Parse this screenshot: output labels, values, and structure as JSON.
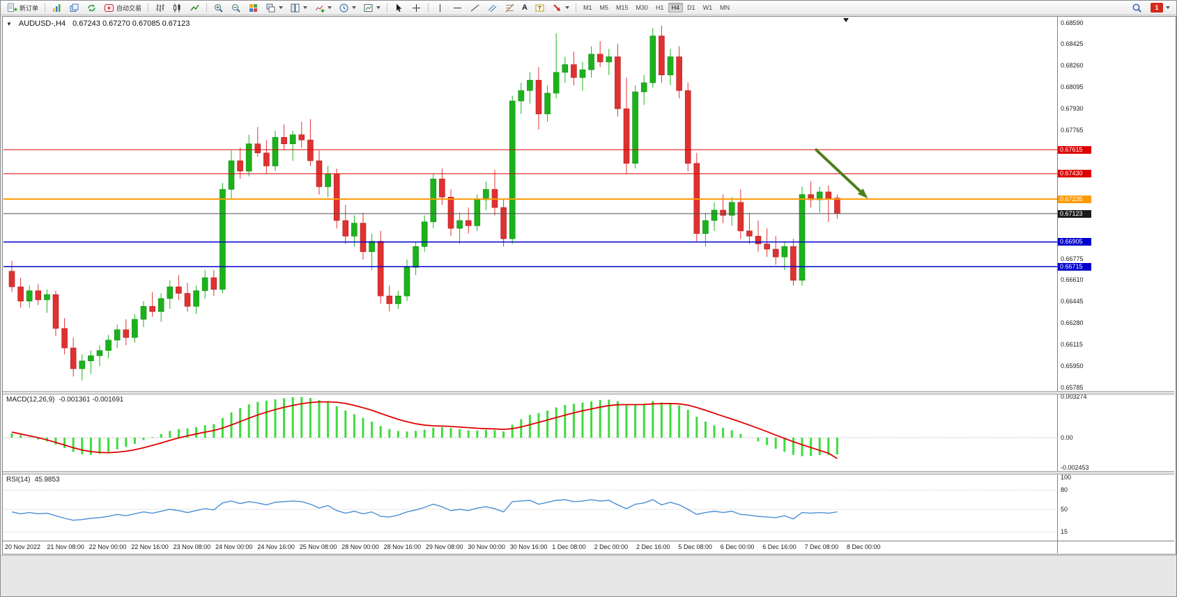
{
  "window": {
    "collapse_marker": "▼",
    "title_symbol": "AUDUSD-,H4",
    "ohlc_text": "0.67243 0.67270 0.67085 0.67123"
  },
  "toolbar": {
    "new_order_label": "新订单",
    "auto_trading_label": "自动交易",
    "text_tool_label": "A",
    "timeframes": [
      "M1",
      "M5",
      "M15",
      "M30",
      "H1",
      "H4",
      "D1",
      "W1",
      "MN"
    ],
    "active_timeframe": "H4",
    "notification_count": "1"
  },
  "colors": {
    "up": "#1db21d",
    "down": "#e03131",
    "up_border": "#0e8a0e",
    "down_border": "#b02020",
    "macd_histogram": "#3ddc3d",
    "macd_signal": "#e00000",
    "rsi_line": "#4a8fd4",
    "arrow": "#4e7f1e"
  },
  "chart_data": {
    "type": "candlestick",
    "symbol": "AUDUSD",
    "period": "H4",
    "current": {
      "open": 0.67243,
      "high": 0.6727,
      "low": 0.67085,
      "close": 0.67123
    },
    "y_axis": {
      "min": 0.65785,
      "max": 0.6859
    },
    "price_ticks": [
      0.6859,
      0.68425,
      0.6826,
      0.68095,
      0.6793,
      0.67765,
      0.66775,
      0.6661,
      0.66445,
      0.6628,
      0.66115,
      0.6595,
      0.65785
    ],
    "price_badges": [
      {
        "label": "0.67615",
        "price": 0.67615,
        "type": "resistance-1",
        "bg": "#dd0000"
      },
      {
        "label": "0.67430",
        "price": 0.6743,
        "type": "resistance-2",
        "bg": "#dd0000"
      },
      {
        "label": "0.67235",
        "price": 0.67235,
        "type": "pivot",
        "bg": "#ff9900"
      },
      {
        "label": "0.67123",
        "price": 0.67123,
        "type": "current-price",
        "bg": "#1c1c1c"
      },
      {
        "label": "0.66905",
        "price": 0.66905,
        "type": "support-1",
        "bg": "#0000cc"
      },
      {
        "label": "0.66715",
        "price": 0.66715,
        "type": "support-2",
        "bg": "#0000cc"
      }
    ],
    "levels": [
      {
        "price": 0.67615,
        "color": "#dd0000",
        "width": 1
      },
      {
        "price": 0.6743,
        "color": "#dd0000",
        "width": 1
      },
      {
        "price": 0.67235,
        "color": "#ff9900",
        "width": 2
      },
      {
        "price": 0.67123,
        "color": "#4d4d4d",
        "width": 1
      },
      {
        "price": 0.66905,
        "color": "#0000cc",
        "width": 1.5
      },
      {
        "price": 0.66715,
        "color": "#0000cc",
        "width": 1.5
      }
    ],
    "arrow_annotation": {
      "from": {
        "index": 91.5,
        "price": 0.6762
      },
      "to": {
        "index": 97.5,
        "price": 0.6724
      },
      "color": "#4e7f1e"
    },
    "time_labels": [
      "20 Nov 2022",
      "21 Nov 08:00",
      "22 Nov 00:00",
      "22 Nov 16:00",
      "23 Nov 08:00",
      "24 Nov 00:00",
      "24 Nov 16:00",
      "25 Nov 08:00",
      "28 Nov 00:00",
      "28 Nov 16:00",
      "29 Nov 08:00",
      "30 Nov 00:00",
      "30 Nov 16:00",
      "1 Dec 08:00",
      "2 Dec 00:00",
      "2 Dec 16:00",
      "5 Dec 08:00",
      "6 Dec 00:00",
      "6 Dec 16:00",
      "7 Dec 08:00",
      "8 Dec 00:00"
    ],
    "candles": [
      [
        0.6668,
        0.6676,
        0.6652,
        0.6656
      ],
      [
        0.6656,
        0.6663,
        0.664,
        0.6645
      ],
      [
        0.6645,
        0.6657,
        0.664,
        0.6653
      ],
      [
        0.6653,
        0.6658,
        0.6642,
        0.6646
      ],
      [
        0.6646,
        0.6654,
        0.6636,
        0.665
      ],
      [
        0.665,
        0.6653,
        0.6618,
        0.6624
      ],
      [
        0.6624,
        0.6632,
        0.6604,
        0.6609
      ],
      [
        0.6609,
        0.6617,
        0.6587,
        0.6593
      ],
      [
        0.6593,
        0.6604,
        0.6584,
        0.6599
      ],
      [
        0.6599,
        0.6607,
        0.6589,
        0.6603
      ],
      [
        0.6603,
        0.6611,
        0.6595,
        0.6607
      ],
      [
        0.6607,
        0.6619,
        0.6601,
        0.6615
      ],
      [
        0.6615,
        0.6627,
        0.6609,
        0.6623
      ],
      [
        0.6623,
        0.6631,
        0.6611,
        0.6617
      ],
      [
        0.6617,
        0.6635,
        0.6613,
        0.6631
      ],
      [
        0.6631,
        0.6645,
        0.6625,
        0.6641
      ],
      [
        0.6641,
        0.6652,
        0.6633,
        0.6637
      ],
      [
        0.6637,
        0.6651,
        0.6629,
        0.6647
      ],
      [
        0.6647,
        0.6661,
        0.6639,
        0.6656
      ],
      [
        0.6656,
        0.6665,
        0.6646,
        0.6651
      ],
      [
        0.6651,
        0.6659,
        0.6637,
        0.6641
      ],
      [
        0.6641,
        0.6657,
        0.6635,
        0.6653
      ],
      [
        0.6653,
        0.6669,
        0.6647,
        0.6663
      ],
      [
        0.6663,
        0.6669,
        0.6649,
        0.6654
      ],
      [
        0.6654,
        0.6736,
        0.6651,
        0.6731
      ],
      [
        0.6731,
        0.6761,
        0.6723,
        0.6753
      ],
      [
        0.6753,
        0.6763,
        0.6739,
        0.6745
      ],
      [
        0.6745,
        0.6773,
        0.6741,
        0.6766
      ],
      [
        0.6766,
        0.6779,
        0.6756,
        0.6759
      ],
      [
        0.6759,
        0.6769,
        0.6743,
        0.6749
      ],
      [
        0.6749,
        0.6776,
        0.6745,
        0.6771
      ],
      [
        0.6771,
        0.6781,
        0.6761,
        0.6766
      ],
      [
        0.6766,
        0.6776,
        0.6753,
        0.6773
      ],
      [
        0.6773,
        0.6783,
        0.6763,
        0.6769
      ],
      [
        0.6769,
        0.6785,
        0.6749,
        0.6753
      ],
      [
        0.6753,
        0.6761,
        0.6727,
        0.6733
      ],
      [
        0.6733,
        0.6749,
        0.6725,
        0.6743
      ],
      [
        0.6743,
        0.6747,
        0.6701,
        0.6707
      ],
      [
        0.6707,
        0.6719,
        0.6689,
        0.6695
      ],
      [
        0.6695,
        0.6711,
        0.6687,
        0.6705
      ],
      [
        0.6705,
        0.6713,
        0.6677,
        0.6683
      ],
      [
        0.6683,
        0.6697,
        0.6669,
        0.6691
      ],
      [
        0.6691,
        0.6699,
        0.6643,
        0.6649
      ],
      [
        0.6649,
        0.6657,
        0.6637,
        0.6643
      ],
      [
        0.6643,
        0.6653,
        0.6639,
        0.6649
      ],
      [
        0.6649,
        0.6677,
        0.6645,
        0.6671
      ],
      [
        0.6671,
        0.6691,
        0.6665,
        0.6687
      ],
      [
        0.6687,
        0.6711,
        0.6683,
        0.6706
      ],
      [
        0.6706,
        0.6743,
        0.6701,
        0.6739
      ],
      [
        0.6739,
        0.6747,
        0.6719,
        0.6725
      ],
      [
        0.6725,
        0.6731,
        0.6695,
        0.6701
      ],
      [
        0.6701,
        0.6713,
        0.6689,
        0.6707
      ],
      [
        0.6707,
        0.6717,
        0.6697,
        0.6703
      ],
      [
        0.6703,
        0.6727,
        0.6699,
        0.6723
      ],
      [
        0.6723,
        0.6737,
        0.6715,
        0.6731
      ],
      [
        0.6731,
        0.6746,
        0.6711,
        0.6717
      ],
      [
        0.6717,
        0.6723,
        0.6687,
        0.6693
      ],
      [
        0.6693,
        0.6803,
        0.6689,
        0.6799
      ],
      [
        0.6799,
        0.6813,
        0.6789,
        0.6807
      ],
      [
        0.6807,
        0.6821,
        0.6797,
        0.6815
      ],
      [
        0.6815,
        0.6825,
        0.6777,
        0.6789
      ],
      [
        0.6789,
        0.6811,
        0.6783,
        0.6805
      ],
      [
        0.6805,
        0.6851,
        0.6801,
        0.6821
      ],
      [
        0.6821,
        0.6833,
        0.6813,
        0.6827
      ],
      [
        0.6827,
        0.6837,
        0.6811,
        0.6817
      ],
      [
        0.6817,
        0.6829,
        0.6807,
        0.6823
      ],
      [
        0.6823,
        0.6841,
        0.6817,
        0.6835
      ],
      [
        0.6835,
        0.6845,
        0.6825,
        0.6829
      ],
      [
        0.6829,
        0.6839,
        0.6819,
        0.6833
      ],
      [
        0.6833,
        0.6843,
        0.6787,
        0.6793
      ],
      [
        0.6793,
        0.6817,
        0.6743,
        0.6751
      ],
      [
        0.6751,
        0.6811,
        0.6747,
        0.6806
      ],
      [
        0.6806,
        0.6819,
        0.6796,
        0.6813
      ],
      [
        0.6813,
        0.6855,
        0.6809,
        0.6849
      ],
      [
        0.6849,
        0.6857,
        0.6813,
        0.6819
      ],
      [
        0.6819,
        0.6839,
        0.6811,
        0.6833
      ],
      [
        0.6833,
        0.6841,
        0.6801,
        0.6807
      ],
      [
        0.6807,
        0.6813,
        0.6745,
        0.6751
      ],
      [
        0.6751,
        0.6759,
        0.6691,
        0.6697
      ],
      [
        0.6697,
        0.6713,
        0.6687,
        0.6707
      ],
      [
        0.6707,
        0.6721,
        0.6699,
        0.6715
      ],
      [
        0.6715,
        0.6727,
        0.6705,
        0.6711
      ],
      [
        0.6711,
        0.6725,
        0.6703,
        0.6721
      ],
      [
        0.6721,
        0.6731,
        0.6693,
        0.6699
      ],
      [
        0.6699,
        0.6713,
        0.6689,
        0.6695
      ],
      [
        0.6695,
        0.6707,
        0.6683,
        0.6689
      ],
      [
        0.6689,
        0.6701,
        0.6679,
        0.6685
      ],
      [
        0.6685,
        0.6695,
        0.6673,
        0.6679
      ],
      [
        0.6679,
        0.6691,
        0.6669,
        0.6687
      ],
      [
        0.6687,
        0.6693,
        0.6657,
        0.6661
      ],
      [
        0.6661,
        0.6733,
        0.6657,
        0.6727
      ],
      [
        0.6727,
        0.6737,
        0.6717,
        0.6723
      ],
      [
        0.6723,
        0.6733,
        0.6713,
        0.6729
      ],
      [
        0.6729,
        0.6734,
        0.6706,
        0.6724
      ],
      [
        0.67243,
        0.6727,
        0.67085,
        0.67123
      ]
    ]
  },
  "macd": {
    "title": "MACD(12,26,9)",
    "values_text": "-0.001361 -0.001691",
    "main_value": -0.001361,
    "signal_value": -0.001691,
    "axis_labels": [
      {
        "text": "0.003274",
        "value": 0.003274
      },
      {
        "text": "0.00",
        "value": 0
      },
      {
        "text": "-0.002453",
        "value": -0.002453
      }
    ],
    "histogram": [
      0.00035,
      0.0002,
      5e-05,
      -0.00015,
      -0.0003,
      -0.00055,
      -0.00085,
      -0.00115,
      -0.00135,
      -0.0014,
      -0.0013,
      -0.00115,
      -0.00095,
      -0.00075,
      -0.0005,
      -0.0002,
      5e-05,
      0.0003,
      0.00055,
      0.0007,
      0.00075,
      0.00085,
      0.001,
      0.0011,
      0.0016,
      0.00205,
      0.0024,
      0.0027,
      0.0029,
      0.003,
      0.0031,
      0.0032,
      0.00328,
      0.0033,
      0.00322,
      0.00305,
      0.00285,
      0.00255,
      0.0022,
      0.0019,
      0.0016,
      0.0013,
      0.00095,
      0.0007,
      0.00055,
      0.0005,
      0.00055,
      0.00065,
      0.0008,
      0.00085,
      0.00078,
      0.00068,
      0.0006,
      0.00058,
      0.00062,
      0.0006,
      0.0005,
      0.00105,
      0.0015,
      0.00185,
      0.002,
      0.0022,
      0.00245,
      0.00265,
      0.00275,
      0.00285,
      0.00295,
      0.00305,
      0.00308,
      0.00295,
      0.0027,
      0.00265,
      0.00275,
      0.00295,
      0.00285,
      0.0028,
      0.00262,
      0.00225,
      0.0017,
      0.0013,
      0.001,
      0.0008,
      0.0006,
      0.0003,
      0,
      -0.0003,
      -0.0006,
      -0.0009,
      -0.00115,
      -0.0014,
      -0.0015,
      -0.00148,
      -0.00142,
      -0.0014,
      -0.001361
    ],
    "signal": [
      0.00045,
      0.0003,
      0.00015,
      0,
      -0.00018,
      -0.00038,
      -0.0006,
      -0.00082,
      -0.001,
      -0.00113,
      -0.0012,
      -0.00122,
      -0.00118,
      -0.0011,
      -0.00098,
      -0.00082,
      -0.00063,
      -0.00043,
      -0.00022,
      -2e-05,
      0.00015,
      0.0003,
      0.00045,
      0.00058,
      0.00078,
      0.00103,
      0.0013,
      0.00158,
      0.00184,
      0.00207,
      0.00228,
      0.00246,
      0.00262,
      0.00275,
      0.00285,
      0.0029,
      0.0029,
      0.00287,
      0.00278,
      0.00262,
      0.00243,
      0.00222,
      0.00197,
      0.00172,
      0.00149,
      0.00129,
      0.00113,
      0.00102,
      0.00096,
      0.00094,
      0.00091,
      0.00086,
      0.00081,
      0.00076,
      0.00073,
      0.00071,
      0.00067,
      0.00073,
      0.00087,
      0.00105,
      0.00124,
      0.00143,
      0.00163,
      0.00183,
      0.00201,
      0.00218,
      0.00233,
      0.00248,
      0.0026,
      0.00267,
      0.00268,
      0.00268,
      0.00269,
      0.00274,
      0.00276,
      0.00277,
      0.00274,
      0.00264,
      0.00245,
      0.00222,
      0.00198,
      0.00174,
      0.00151,
      0.00127,
      0.00102,
      0.00076,
      0.00049,
      0.00021,
      -6e-05,
      -0.00033,
      -0.00057,
      -0.0008,
      -0.00103,
      -0.00126,
      -0.001691
    ]
  },
  "rsi": {
    "title": "RSI(14)",
    "value_text": "45.9853",
    "axis_labels": [
      {
        "text": "100",
        "value": 100
      },
      {
        "text": "80",
        "value": 80
      },
      {
        "text": "50",
        "value": 50
      },
      {
        "text": "15",
        "value": 15
      }
    ],
    "level_lines": [
      80,
      50,
      15
    ],
    "values": [
      46,
      43,
      45,
      43,
      44,
      40,
      36,
      33,
      34,
      36,
      37,
      39,
      42,
      40,
      43,
      46,
      44,
      47,
      50,
      48,
      45,
      48,
      51,
      49,
      60,
      63,
      59,
      62,
      60,
      57,
      61,
      62,
      63,
      62,
      58,
      52,
      56,
      48,
      44,
      47,
      43,
      46,
      39,
      38,
      41,
      46,
      49,
      53,
      58,
      54,
      48,
      50,
      48,
      52,
      54,
      51,
      46,
      62,
      63,
      64,
      58,
      61,
      64,
      65,
      62,
      63,
      65,
      63,
      64,
      57,
      51,
      58,
      60,
      65,
      57,
      61,
      57,
      50,
      42,
      45,
      47,
      45,
      47,
      42,
      41,
      39,
      38,
      37,
      40,
      35,
      45,
      44,
      45,
      44,
      45.9853
    ]
  }
}
